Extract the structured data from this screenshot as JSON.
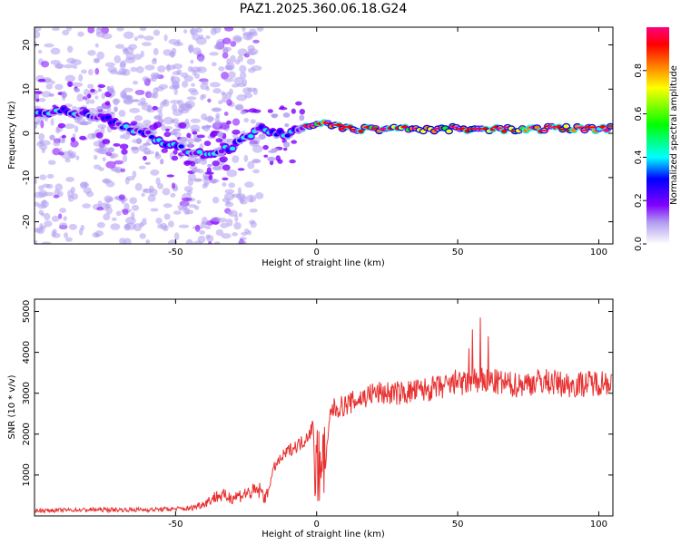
{
  "figure_title": "PAZ1.2025.360.06.18.G24",
  "chart_data": [
    {
      "type": "heatmap",
      "title": "PAZ1.2025.360.06.18.G24",
      "xlabel": "Height of straight line (km)",
      "ylabel": "Frequency (Hz)",
      "xlim": [
        -100,
        105
      ],
      "ylim": [
        -25,
        24
      ],
      "xticks": [
        "-50",
        "0",
        "50",
        "100"
      ],
      "yticks": [
        "20",
        "10",
        "0",
        "-10",
        "-20"
      ],
      "colorbar": {
        "label": "Normalized spectral amplitude",
        "range": [
          0,
          1
        ],
        "ticks": [
          "0.0",
          "0.2",
          "0.4",
          "0.6",
          "0.8"
        ],
        "colors": [
          "#ffffff",
          "#b09cf0",
          "#8000ff",
          "#0000ff",
          "#00ffff",
          "#00ff00",
          "#ffff00",
          "#ff8000",
          "#ff0000",
          "#ff0080"
        ]
      },
      "ridge": {
        "x": [
          -100,
          -90,
          -80,
          -75,
          -70,
          -65,
          -60,
          -55,
          -50,
          -45,
          -40,
          -35,
          -30,
          -25,
          -20,
          -15,
          -10,
          -5,
          0,
          5,
          10,
          20,
          30,
          40,
          50,
          60,
          70,
          80,
          90,
          105
        ],
        "y": [
          5,
          5,
          4,
          4,
          2,
          1,
          0,
          -2,
          -3,
          -4,
          -5,
          -4,
          -3,
          -1,
          1,
          0,
          0,
          1,
          2,
          2,
          1,
          1,
          1,
          1,
          1,
          1,
          1,
          1,
          1,
          1
        ]
      }
    },
    {
      "type": "line",
      "xlabel": "Height of straight line (km)",
      "ylabel": "SNR (10 * v/v)",
      "xlim": [
        -100,
        105
      ],
      "ylim": [
        0,
        5300
      ],
      "xticks": [
        "-50",
        "0",
        "50",
        "100"
      ],
      "yticks": [
        "1000",
        "2000",
        "3000",
        "4000",
        "5000"
      ],
      "color": "#e83030",
      "series": [
        {
          "name": "SNR",
          "x": [
            -100,
            -80,
            -60,
            -45,
            -40,
            -35,
            -30,
            -25,
            -20,
            -18,
            -15,
            -10,
            -5,
            0,
            2,
            5,
            10,
            20,
            30,
            40,
            50,
            55,
            60,
            70,
            80,
            90,
            105
          ],
          "y": [
            130,
            150,
            150,
            180,
            300,
            500,
            450,
            550,
            620,
            420,
            1200,
            1600,
            1800,
            2300,
            400,
            2600,
            2700,
            3000,
            3000,
            3100,
            3200,
            3300,
            3300,
            3200,
            3300,
            3200,
            3300
          ]
        }
      ]
    }
  ]
}
